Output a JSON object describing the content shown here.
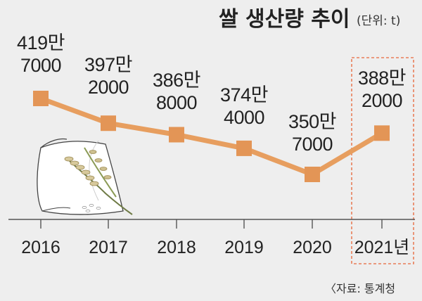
{
  "header": {
    "title": "쌀 생산량 추이",
    "unit": "(단위: t)"
  },
  "source": "〈자료: 통계청",
  "colors": {
    "line": "#e79e5f",
    "marker": "#e39556",
    "highlight_box": "#e87d58",
    "axis": "#555555"
  },
  "chart_data": {
    "type": "line",
    "title": "쌀 생산량 추이",
    "categories": [
      "2016",
      "2017",
      "2018",
      "2019",
      "2020",
      "2021년"
    ],
    "values": [
      4197000,
      3972000,
      3868000,
      3744000,
      3507000,
      3882000
    ],
    "value_labels": [
      [
        "419만",
        "7000"
      ],
      [
        "397만",
        "2000"
      ],
      [
        "386만",
        "8000"
      ],
      [
        "374만",
        "4000"
      ],
      [
        "350만",
        "7000"
      ],
      [
        "388만",
        "2000"
      ]
    ],
    "highlight_index": 5,
    "ylim": [
      3200000,
      4300000
    ],
    "grid": false,
    "legend": "none"
  }
}
